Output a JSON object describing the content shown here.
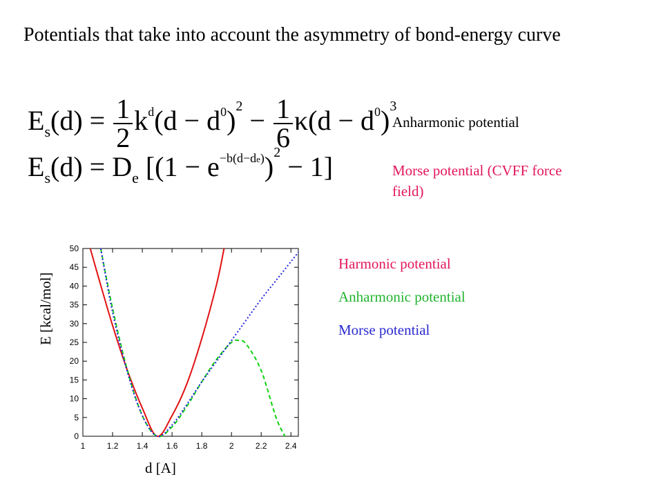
{
  "title": "Potentials that take into account the asymmetry of bond-energy curve",
  "formulas": {
    "f1": {
      "lhs_E": "E",
      "lhs_s": "s",
      "lhs_d": "(d) =",
      "frac1_num": "1",
      "frac1_den": "2",
      "k": "k",
      "k_sup": "d",
      "paren1": "(d − d",
      "d0_sup": "0",
      "close1": ")",
      "sq": "2",
      "minus": "−",
      "frac2_num": "1",
      "frac2_den": "6",
      "kappa": "κ",
      "paren2": "(d − d",
      "d0_sup2": "0",
      "close2": ")",
      "cube": "3"
    },
    "f2": {
      "lhs_E": "E",
      "lhs_s": "s",
      "lhs_d": "(d) = D",
      "De_sub": "e",
      "open": "[(1 − e",
      "exp": "−b(d−d",
      "exp_sub": "e",
      "exp_close": ")",
      "close": ")",
      "sq": "2",
      "tail": "− 1]"
    }
  },
  "labels": {
    "anharmonic": "Anharmonic potential",
    "morse_cvff": "Morse potential (CVFF force field)"
  },
  "legend": {
    "harmonic": "Harmonic potential",
    "anharmonic": "Anharmonic potential",
    "morse": "Morse potential"
  },
  "chart_data": {
    "type": "line",
    "xlabel": "d [A]",
    "ylabel": "E [kcal/mol]",
    "xlim": [
      1.0,
      2.45
    ],
    "ylim": [
      0,
      50
    ],
    "xticks": [
      "1",
      "1.2",
      "1.4",
      "1.6",
      "1.8",
      "2",
      "2.2",
      "2.4"
    ],
    "yticks": [
      "0",
      "5",
      "10",
      "15",
      "20",
      "25",
      "30",
      "35",
      "40",
      "45",
      "50"
    ],
    "series": [
      {
        "name": "Harmonic potential",
        "color": "#e01010",
        "style": "solid",
        "x": [
          1.05,
          1.1,
          1.2,
          1.3,
          1.4,
          1.5,
          1.6,
          1.7,
          1.8,
          1.9,
          1.95
        ],
        "y": [
          50,
          43,
          29.5,
          17.5,
          7.5,
          0,
          5.5,
          14,
          26,
          40.5,
          50
        ]
      },
      {
        "name": "Anharmonic potential",
        "color": "#10d010",
        "style": "dashed",
        "x": [
          1.12,
          1.2,
          1.3,
          1.4,
          1.5,
          1.6,
          1.7,
          1.8,
          1.9,
          2.0,
          2.05,
          2.1,
          2.2,
          2.3,
          2.36
        ],
        "y": [
          50,
          34,
          17.5,
          5.5,
          0,
          2.5,
          8,
          14.5,
          20.5,
          25,
          25.5,
          24.5,
          17.5,
          5,
          0
        ]
      },
      {
        "name": "Morse potential",
        "color": "#2020e0",
        "style": "dotted",
        "x": [
          1.12,
          1.2,
          1.3,
          1.4,
          1.5,
          1.6,
          1.7,
          1.8,
          1.9,
          2.0,
          2.1,
          2.2,
          2.3,
          2.4,
          2.45
        ],
        "y": [
          50,
          33,
          17,
          5.5,
          0,
          3,
          8.5,
          14.5,
          20,
          25.5,
          31,
          36.5,
          41.5,
          46.5,
          49
        ]
      }
    ]
  }
}
